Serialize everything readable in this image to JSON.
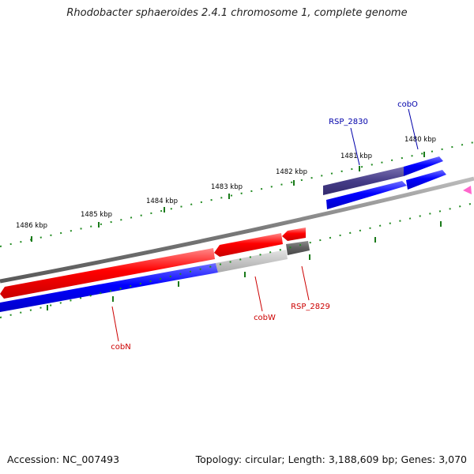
{
  "title": "Rhodobacter sphaeroides 2.4.1 chromosome 1, complete genome",
  "scale_labels": [
    "1486 kbp",
    "1485 kbp",
    "1484 kbp",
    "1483 kbp",
    "1482 kbp",
    "1481 kbp",
    "1480 kbp"
  ],
  "gene_labels": {
    "RSP_2830": "RSP_2830",
    "cobO": "cobO",
    "cobN": "cobN",
    "cobW": "cobW",
    "RSP_2829": "RSP_2829"
  },
  "colors": {
    "forward_gene": "#0000ff",
    "reverse_gene": "#ff0000",
    "rsp2830_shade": "#463d88",
    "ticks": "#228B22",
    "forward_label": "#0000aa",
    "reverse_label": "#cc0000",
    "backbone": "#7a7a7a"
  },
  "footer": {
    "accession": "Accession: NC_007493",
    "topology": "Topology: circular; Length: 3,188,609 bp; Genes: 3,070"
  }
}
